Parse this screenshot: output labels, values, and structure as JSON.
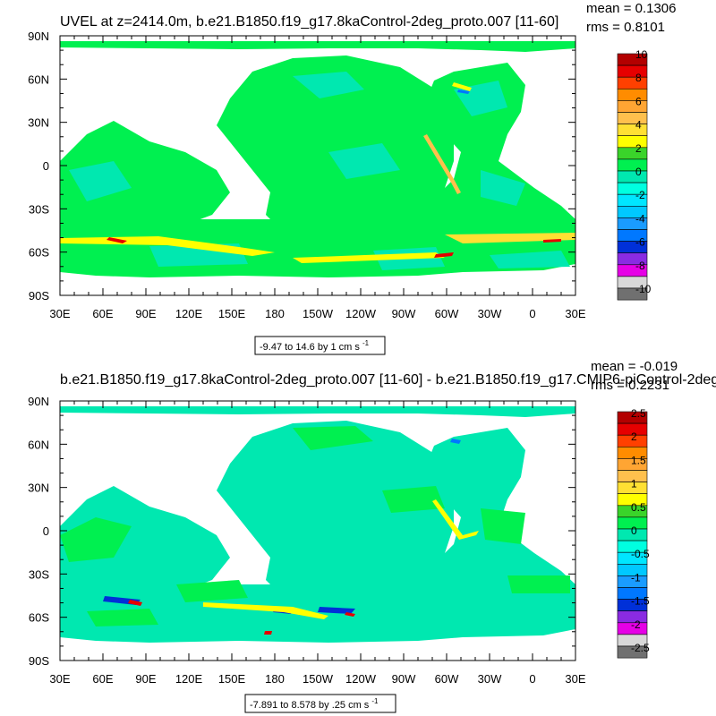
{
  "chart_data": [
    {
      "type": "heatmap",
      "title": "UVEL at z=2414.0m, b.e21.B1850.f19_g17.8kaControl-2deg_proto.007 [11-60]",
      "stats": {
        "mean": "mean = 0.1306",
        "rms": "rms = 0.8101"
      },
      "x_ticks": [
        "30E",
        "60E",
        "90E",
        "120E",
        "150E",
        "180",
        "150W",
        "120W",
        "90W",
        "60W",
        "30W",
        "0",
        "30E"
      ],
      "y_ticks": [
        "90N",
        "60N",
        "30N",
        "0",
        "30S",
        "60S",
        "90S"
      ],
      "range_label": "-9.47 to 14.6 by 1 cm s",
      "range_unit_sup": "-1",
      "colorbar": {
        "labels": [
          "10",
          "8",
          "6",
          "4",
          "2",
          "0",
          "-2",
          "-4",
          "-6",
          "-8",
          "-10"
        ],
        "colors": [
          "#b30000",
          "#e60000",
          "#ff4000",
          "#ff8c00",
          "#ffa533",
          "#ffc04d",
          "#ffe033",
          "#ffff00",
          "#3ad42a",
          "#00f050",
          "#00e8b0",
          "#00ffe0",
          "#00e6ff",
          "#00c8ff",
          "#1a9cff",
          "#0078ff",
          "#0030d8",
          "#8a2be2",
          "#e600e6",
          "#d8d8d8",
          "#707070"
        ]
      }
    },
    {
      "type": "heatmap",
      "title": "b.e21.B1850.f19_g17.8kaControl-2deg_proto.007 [11-60] - b.e21.B1850.f19_g17.CMIP6-piControl-2deg",
      "stats": {
        "mean": "mean = -0.019",
        "rms": "rms = 0.2231"
      },
      "x_ticks": [
        "30E",
        "60E",
        "90E",
        "120E",
        "150E",
        "180",
        "150W",
        "120W",
        "90W",
        "60W",
        "30W",
        "0",
        "30E"
      ],
      "y_ticks": [
        "90N",
        "60N",
        "30N",
        "0",
        "30S",
        "60S",
        "90S"
      ],
      "range_label": "-7.891 to 8.578 by .25 cm s",
      "range_unit_sup": "-1",
      "colorbar": {
        "labels": [
          "2.5",
          "2",
          "1.5",
          "1",
          "0.5",
          "0",
          "-0.5",
          "-1",
          "-1.5",
          "-2",
          "-2.5"
        ],
        "colors": [
          "#b30000",
          "#e60000",
          "#ff4000",
          "#ff8c00",
          "#ffa533",
          "#ffc04d",
          "#ffe033",
          "#ffff00",
          "#3ad42a",
          "#00f050",
          "#00e8b0",
          "#00ffe0",
          "#00e6ff",
          "#00c8ff",
          "#1a9cff",
          "#0078ff",
          "#0030d8",
          "#8a2be2",
          "#e600e6",
          "#d8d8d8",
          "#707070"
        ]
      }
    }
  ]
}
